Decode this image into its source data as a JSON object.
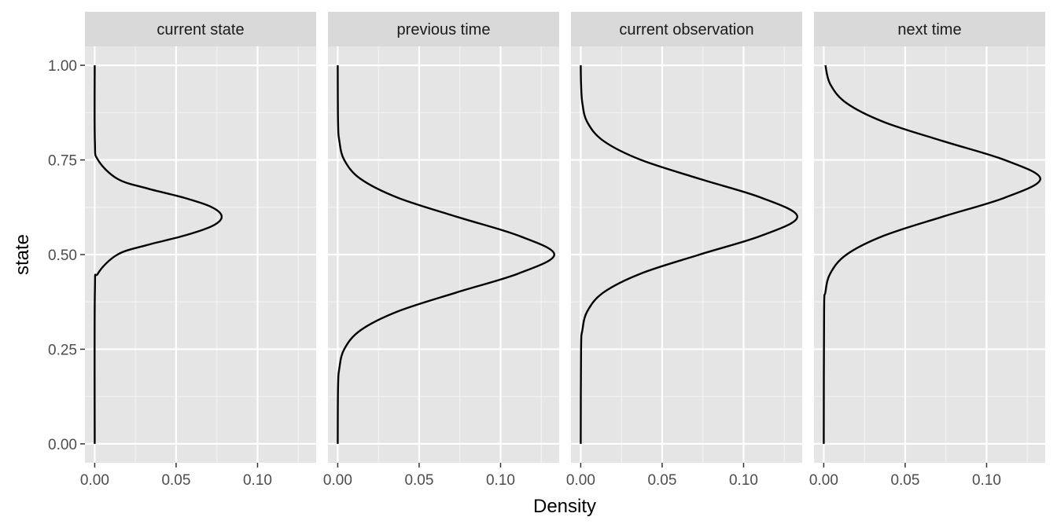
{
  "chart_data": {
    "type": "line",
    "facet_layout": "1 row x 4 columns, shared axes",
    "xlabel": "Density",
    "ylabel": "state",
    "xlim": [
      -0.006,
      0.136
    ],
    "ylim": [
      -0.05,
      1.05
    ],
    "x_ticks": [
      0.0,
      0.05,
      0.1
    ],
    "x_tick_labels": [
      "0.00",
      "0.05",
      "0.10"
    ],
    "y_ticks": [
      0.0,
      0.25,
      0.5,
      0.75,
      1.0
    ],
    "y_tick_labels": [
      "0.00",
      "0.25",
      "0.50",
      "0.75",
      "1.00"
    ],
    "grid": true,
    "panel_background": "#e5e5e5",
    "strip_background": "#d9d9d9",
    "line_color": "#000000",
    "panels": [
      {
        "title": "current state",
        "points": [
          {
            "state": 0.0,
            "density": 0.0
          },
          {
            "state": 0.4,
            "density": 0.0001
          },
          {
            "state": 0.45,
            "density": 0.002
          },
          {
            "state": 0.5,
            "density": 0.014
          },
          {
            "state": 0.525,
            "density": 0.032
          },
          {
            "state": 0.55,
            "density": 0.055
          },
          {
            "state": 0.575,
            "density": 0.072
          },
          {
            "state": 0.6,
            "density": 0.078
          },
          {
            "state": 0.625,
            "density": 0.072
          },
          {
            "state": 0.65,
            "density": 0.055
          },
          {
            "state": 0.675,
            "density": 0.032
          },
          {
            "state": 0.7,
            "density": 0.014
          },
          {
            "state": 0.75,
            "density": 0.002
          },
          {
            "state": 0.8,
            "density": 0.0001
          },
          {
            "state": 1.0,
            "density": 0.0
          }
        ]
      },
      {
        "title": "previous time",
        "points": [
          {
            "state": 0.0,
            "density": 0.0
          },
          {
            "state": 0.15,
            "density": 0.0002
          },
          {
            "state": 0.2,
            "density": 0.001
          },
          {
            "state": 0.25,
            "density": 0.004
          },
          {
            "state": 0.3,
            "density": 0.014
          },
          {
            "state": 0.35,
            "density": 0.037
          },
          {
            "state": 0.4,
            "density": 0.073
          },
          {
            "state": 0.45,
            "density": 0.111
          },
          {
            "state": 0.5,
            "density": 0.133
          },
          {
            "state": 0.55,
            "density": 0.111
          },
          {
            "state": 0.6,
            "density": 0.073
          },
          {
            "state": 0.65,
            "density": 0.037
          },
          {
            "state": 0.7,
            "density": 0.014
          },
          {
            "state": 0.75,
            "density": 0.004
          },
          {
            "state": 0.8,
            "density": 0.001
          },
          {
            "state": 0.85,
            "density": 0.0002
          },
          {
            "state": 1.0,
            "density": 0.0
          }
        ]
      },
      {
        "title": "current observation",
        "points": [
          {
            "state": 0.0,
            "density": 0.0
          },
          {
            "state": 0.25,
            "density": 0.0002
          },
          {
            "state": 0.3,
            "density": 0.001
          },
          {
            "state": 0.35,
            "density": 0.004
          },
          {
            "state": 0.4,
            "density": 0.014
          },
          {
            "state": 0.45,
            "density": 0.037
          },
          {
            "state": 0.5,
            "density": 0.073
          },
          {
            "state": 0.55,
            "density": 0.111
          },
          {
            "state": 0.6,
            "density": 0.133
          },
          {
            "state": 0.65,
            "density": 0.111
          },
          {
            "state": 0.7,
            "density": 0.073
          },
          {
            "state": 0.75,
            "density": 0.037
          },
          {
            "state": 0.8,
            "density": 0.014
          },
          {
            "state": 0.85,
            "density": 0.004
          },
          {
            "state": 0.9,
            "density": 0.001
          },
          {
            "state": 0.95,
            "density": 0.0002
          },
          {
            "state": 1.0,
            "density": 0.0
          }
        ]
      },
      {
        "title": "next time",
        "points": [
          {
            "state": 0.0,
            "density": 0.0
          },
          {
            "state": 0.35,
            "density": 0.0002
          },
          {
            "state": 0.4,
            "density": 0.001
          },
          {
            "state": 0.45,
            "density": 0.004
          },
          {
            "state": 0.5,
            "density": 0.014
          },
          {
            "state": 0.55,
            "density": 0.037
          },
          {
            "state": 0.6,
            "density": 0.073
          },
          {
            "state": 0.65,
            "density": 0.111
          },
          {
            "state": 0.7,
            "density": 0.133
          },
          {
            "state": 0.75,
            "density": 0.111
          },
          {
            "state": 0.8,
            "density": 0.073
          },
          {
            "state": 0.85,
            "density": 0.037
          },
          {
            "state": 0.9,
            "density": 0.014
          },
          {
            "state": 0.95,
            "density": 0.004
          },
          {
            "state": 1.0,
            "density": 0.001
          }
        ]
      }
    ]
  }
}
